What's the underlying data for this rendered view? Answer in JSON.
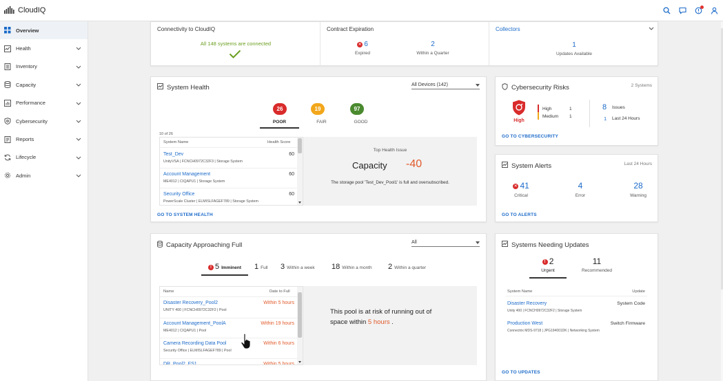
{
  "app": {
    "title": "CloudIQ"
  },
  "header_icons": [
    "search-icon",
    "chat-icon",
    "notification-icon",
    "user-icon"
  ],
  "sidebar": {
    "items": [
      {
        "label": "Overview",
        "icon": "grid-icon",
        "active": true
      },
      {
        "label": "Health",
        "icon": "health-icon"
      },
      {
        "label": "Inventory",
        "icon": "inventory-icon"
      },
      {
        "label": "Capacity",
        "icon": "capacity-icon"
      },
      {
        "label": "Performance",
        "icon": "performance-icon"
      },
      {
        "label": "Cybersecurity",
        "icon": "shield-icon"
      },
      {
        "label": "Reports",
        "icon": "reports-icon"
      },
      {
        "label": "Lifecycle",
        "icon": "lifecycle-icon"
      },
      {
        "label": "Admin",
        "icon": "gear-icon"
      }
    ]
  },
  "connectivity": {
    "title": "Connectivity to CloudIQ",
    "message": "All 148 systems are connected"
  },
  "contract": {
    "title": "Contract Expiration",
    "expired_count": "6",
    "expired_label": "Expired",
    "quarter_count": "2",
    "quarter_label": "Within a Quarter"
  },
  "collectors": {
    "title": "Collectors",
    "count": "1",
    "label": "Updates Available"
  },
  "system_health": {
    "title": "System Health",
    "filter": "All Devices (142)",
    "tabs": [
      {
        "count": "26",
        "label": "POOR",
        "color": "#d92b2b"
      },
      {
        "count": "19",
        "label": "FAIR",
        "color": "#f2a71b"
      },
      {
        "count": "97",
        "label": "GOOD",
        "color": "#4a8a2f"
      }
    ],
    "page_info": "10 of 26",
    "col_name": "System Name",
    "col_score": "Health Score",
    "rows": [
      {
        "name": "Test_Dev",
        "sub": "UnityVSA | FCNCH0972C32F3 | Storage System",
        "score": "60"
      },
      {
        "name": "Account Management",
        "sub": "ME4012 | CIQAPU1 | Storage System",
        "score": "60"
      },
      {
        "name": "Security Office",
        "sub": "PowerScale Cluster | ELMISLFAGEF789 | Storage System",
        "score": "60"
      }
    ],
    "detail_title": "Top Health Issue",
    "detail_category": "Capacity",
    "detail_score": "-40",
    "detail_desc": "The storage pool 'Test_Dev_Pool1' is full and oversubscribed.",
    "link": "GO TO SYSTEM HEALTH"
  },
  "cyber": {
    "title": "Cybersecurity Risks",
    "systems": "2 Systems",
    "level": "High",
    "high_label": "High",
    "high_count": "1",
    "medium_label": "Medium",
    "medium_count": "1",
    "issues_count": "8",
    "issues_label": "Issues",
    "recent_count": "1",
    "recent_label": "Last 24 Hours",
    "link": "GO TO CYBERSECURITY"
  },
  "alerts": {
    "title": "System Alerts",
    "period": "Last 24 Hours",
    "critical_count": "41",
    "critical_label": "Critical",
    "error_count": "4",
    "error_label": "Error",
    "warning_count": "28",
    "warning_label": "Warning",
    "link": "GO TO ALERTS"
  },
  "capacity": {
    "title": "Capacity Approaching Full",
    "filter": "All",
    "tabs": [
      {
        "count": "5",
        "label": "Imminent"
      },
      {
        "count": "1",
        "label": "Full"
      },
      {
        "count": "3",
        "label": "Within a week"
      },
      {
        "count": "18",
        "label": "Within a month"
      },
      {
        "count": "2",
        "label": "Within a quarter"
      }
    ],
    "col_name": "Name",
    "col_date": "Date to Full",
    "rows": [
      {
        "name": "Disaster Recovery_Pool2",
        "sub": "UNITY 400 | FCNCH0972C32F2 | Pool",
        "when": "Within 5 hours"
      },
      {
        "name": "Account Management_PoolA",
        "sub": "ME4012 | CIQAPU1 | Pool",
        "when": "Within 19 hours"
      },
      {
        "name": "Camera Recording Data Pool",
        "sub": "Security Office | ELMISLFAGEF789 | Pool",
        "when": "Within 6 hours"
      },
      {
        "name": "DR_Pool2_FS1",
        "sub": "",
        "when": "Within 5 hours"
      }
    ],
    "detail_line1": "This pool is at risk of running out of",
    "detail_line2_pre": "space within ",
    "detail_line2_hl": "5 hours",
    "detail_line2_post": " ."
  },
  "updates": {
    "title": "Systems Needing Updates",
    "urgent_count": "2",
    "urgent_label": "Urgent",
    "recommended_count": "11",
    "recommended_label": "Recommended",
    "col_name": "System Name",
    "col_update": "Update",
    "rows": [
      {
        "name": "Disaster Recovery",
        "sub": "Unity 400 | FCNCH0972C32F2 | Storage System",
        "update": "System Code"
      },
      {
        "name": "Production West",
        "sub": "Connectrix MDS-9718 | JPG194001DK | Networking System",
        "update": "Switch Firmware"
      }
    ],
    "link": "GO TO UPDATES"
  },
  "colors": {
    "accent": "#1b6ac9",
    "critical": "#d92b2b",
    "fair": "#f2a71b",
    "good": "#4a8a2f",
    "success": "#6a9e1f",
    "warning": "#e05a2b"
  }
}
